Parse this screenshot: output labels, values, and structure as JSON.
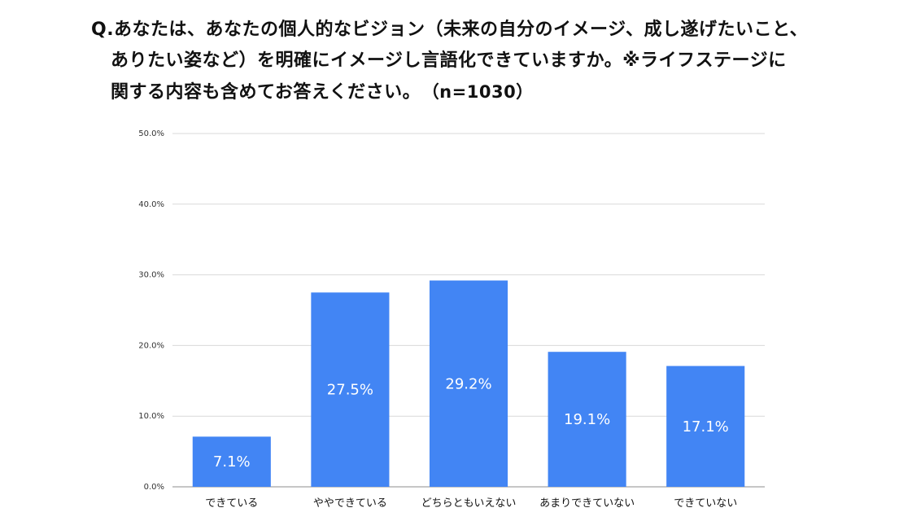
{
  "header": {
    "question_lines": [
      "Q.あなたは、あなたの個人的なビジョン（未来の自分のイメージ、成し遂げたいこと、",
      "ありたい姿など）を明確にイメージし言語化できていますか。※ライフステージに",
      "関する内容も含めてお答えください。"
    ],
    "sample_size": "（n=1030）"
  },
  "chart_data": {
    "type": "bar",
    "categories": [
      "できている",
      "ややできている",
      "どちらともいえない",
      "あまりできていない",
      "できていない"
    ],
    "values": [
      7.1,
      27.5,
      29.2,
      19.1,
      17.1
    ],
    "data_labels": [
      "7.1%",
      "27.5%",
      "29.2%",
      "19.1%",
      "17.1%"
    ],
    "ylim": [
      0,
      50
    ],
    "y_ticks": [
      0,
      10,
      20,
      30,
      40,
      50
    ],
    "y_tick_labels": [
      "0.0%",
      "10.0%",
      "20.0%",
      "30.0%",
      "40.0%",
      "50.0%"
    ],
    "grid": true,
    "legend": "none",
    "bar_color": "#4285F4",
    "grid_color": "#d9d9d9"
  }
}
